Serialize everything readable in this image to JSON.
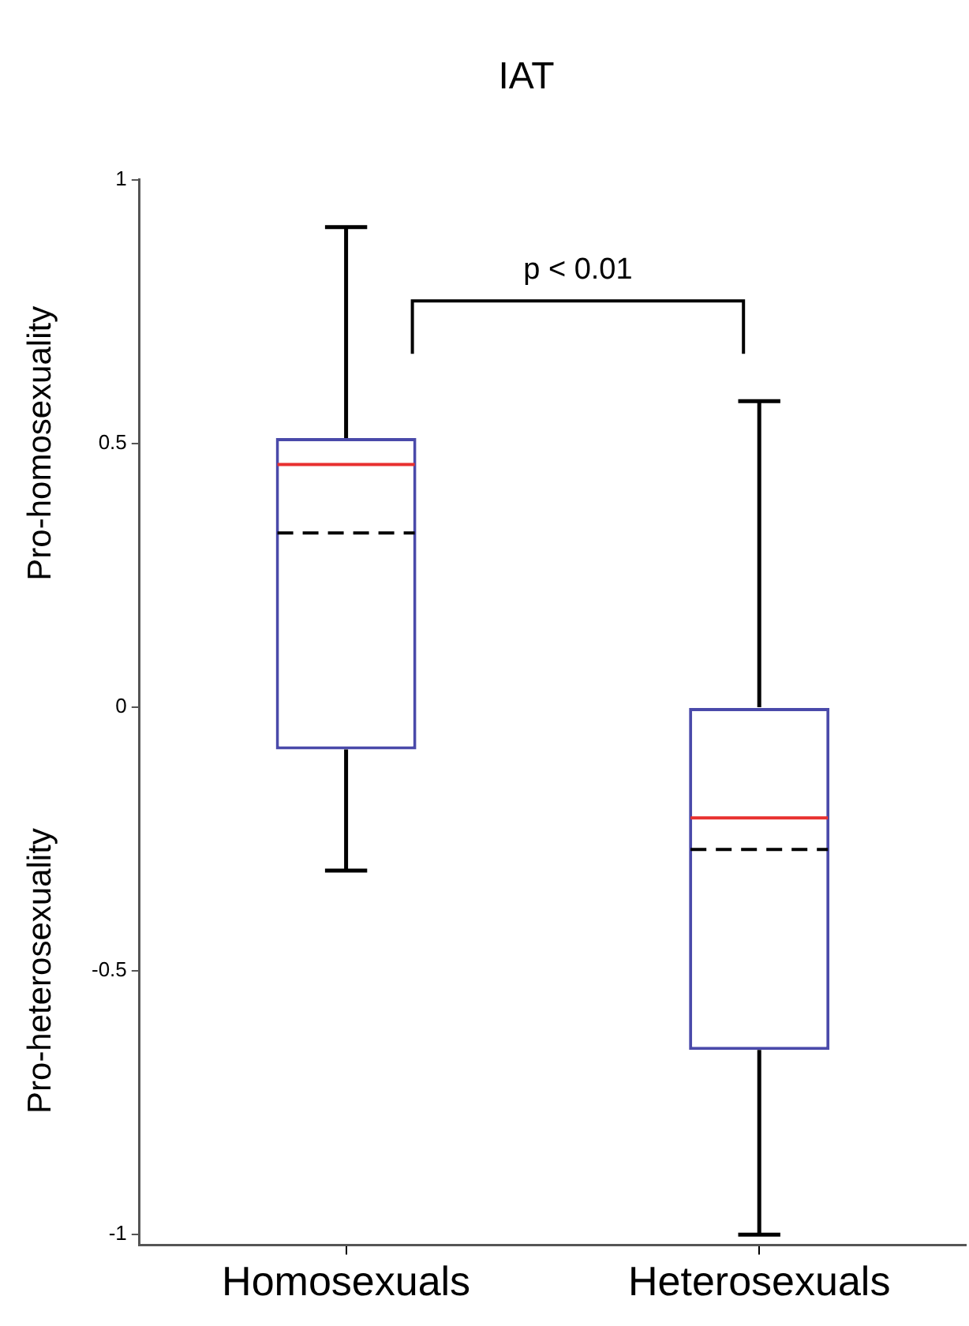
{
  "chart_data": {
    "type": "box",
    "title": "IAT",
    "categories": [
      "Homosexuals",
      "Heterosexuals"
    ],
    "series": [
      {
        "color": "#4a4aaa",
        "boxes": [
          {
            "low": -0.31,
            "q1": -0.08,
            "median": 0.46,
            "q3": 0.51,
            "high": 0.91,
            "mean": 0.33
          },
          {
            "low": -1.0,
            "q1": -0.65,
            "median": -0.21,
            "q3": 0,
            "high": 0.58,
            "mean": -0.27
          }
        ]
      }
    ],
    "ylim": [
      -1.02,
      1
    ],
    "yticks": [
      1,
      0.5,
      0,
      -0.5,
      -1
    ],
    "grid": false,
    "legend": false,
    "annotations": [
      "p < 0.01",
      "Pro-homosexuality",
      "Pro-heterosexuality"
    ]
  }
}
